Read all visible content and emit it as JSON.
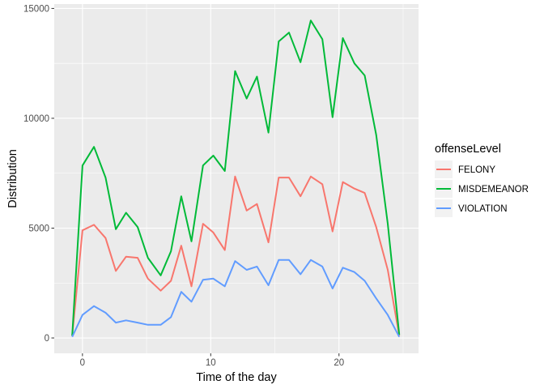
{
  "chart_data": {
    "type": "line",
    "xlabel": "Time of the day",
    "ylabel": "Distribution",
    "xlim": [
      -2.2,
      26.2
    ],
    "ylim": [
      -700,
      15200
    ],
    "xticks": [
      0,
      10,
      20
    ],
    "xtick_labels": [
      "0",
      "10",
      "20"
    ],
    "yticks": [
      0,
      5000,
      10000,
      15000
    ],
    "ytick_labels": [
      "0",
      "5000",
      "10000",
      "15000"
    ],
    "grid": true,
    "legend": {
      "title": "offenseLevel",
      "placement": "right"
    },
    "x": [
      -0.8,
      0,
      0.9,
      1.8,
      2.6,
      3.4,
      4.3,
      5.1,
      6.1,
      6.9,
      7.7,
      8.5,
      9.4,
      10.2,
      11.1,
      11.9,
      12.8,
      13.6,
      14.5,
      15.3,
      16.1,
      17,
      17.8,
      18.7,
      19.5,
      20.3,
      21.2,
      22,
      22.9,
      23.8,
      24.7
    ],
    "series": [
      {
        "name": "FELONY",
        "color": "#F8766D",
        "values": [
          100,
          4900,
          5150,
          4550,
          3050,
          3700,
          3650,
          2700,
          2150,
          2600,
          4200,
          2350,
          5200,
          4800,
          4000,
          7350,
          5800,
          6100,
          4350,
          7300,
          7300,
          6450,
          7350,
          7000,
          4850,
          7100,
          6800,
          6600,
          5050,
          3100,
          100
        ]
      },
      {
        "name": "MISDEMEANOR",
        "color": "#00BA38",
        "values": [
          100,
          7850,
          8700,
          7300,
          4950,
          5700,
          5050,
          3650,
          2850,
          3950,
          6450,
          4400,
          7850,
          8300,
          7600,
          12150,
          10900,
          11900,
          9350,
          13500,
          13900,
          12550,
          14450,
          13600,
          10050,
          13650,
          12500,
          11950,
          9250,
          5200,
          150
        ]
      },
      {
        "name": "VIOLATION",
        "color": "#619CFF",
        "values": [
          50,
          1050,
          1450,
          1150,
          700,
          800,
          700,
          600,
          600,
          950,
          2100,
          1650,
          2650,
          2700,
          2350,
          3500,
          3100,
          3250,
          2400,
          3550,
          3550,
          2900,
          3550,
          3250,
          2250,
          3200,
          3000,
          2600,
          1800,
          1050,
          50
        ]
      }
    ]
  }
}
